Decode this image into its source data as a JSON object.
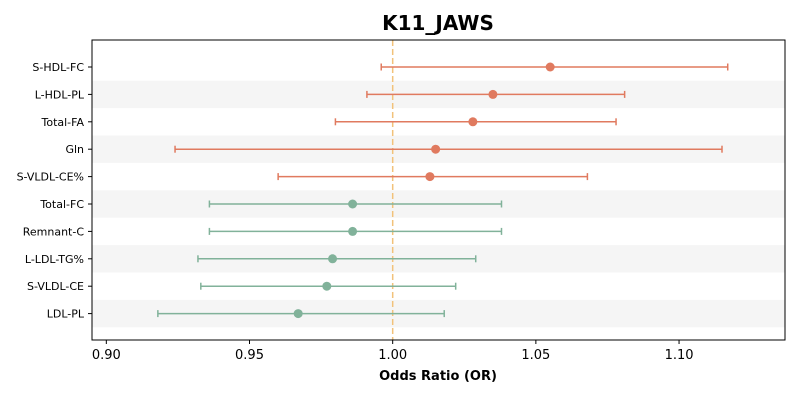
{
  "chart_data": {
    "type": "forest",
    "title": "K11_JAWS",
    "xlabel": "Odds Ratio (OR)",
    "ylabel": "",
    "xlim": [
      0.895,
      1.137
    ],
    "xticks": [
      0.9,
      0.95,
      1.0,
      1.05,
      1.1
    ],
    "xtick_labels": [
      "0.90",
      "0.95",
      "1.00",
      "1.05",
      "1.10"
    ],
    "reference_line": 1.0,
    "reference_color": "#f2c27a",
    "band_color": "#f5f5f5",
    "series": [
      {
        "color": "#e07a5f",
        "rows": [
          "S-HDL-FC",
          "L-HDL-PL",
          "Total-FA",
          "Gln",
          "S-VLDL-CE%"
        ]
      },
      {
        "color": "#81b29a",
        "rows": [
          "Total-FC",
          "Remnant-C",
          "L-LDL-TG%",
          "S-VLDL-CE",
          "LDL-PL"
        ]
      }
    ],
    "rows": [
      {
        "label": "S-HDL-FC",
        "or": 1.055,
        "lower": 0.996,
        "upper": 1.117,
        "color": "#e07a5f"
      },
      {
        "label": "L-HDL-PL",
        "or": 1.035,
        "lower": 0.991,
        "upper": 1.081,
        "color": "#e07a5f"
      },
      {
        "label": "Total-FA",
        "or": 1.028,
        "lower": 0.98,
        "upper": 1.078,
        "color": "#e07a5f"
      },
      {
        "label": "Gln",
        "or": 1.015,
        "lower": 0.924,
        "upper": 1.115,
        "color": "#e07a5f"
      },
      {
        "label": "S-VLDL-CE%",
        "or": 1.013,
        "lower": 0.96,
        "upper": 1.068,
        "color": "#e07a5f"
      },
      {
        "label": "Total-FC",
        "or": 0.986,
        "lower": 0.936,
        "upper": 1.038,
        "color": "#81b29a"
      },
      {
        "label": "Remnant-C",
        "or": 0.986,
        "lower": 0.936,
        "upper": 1.038,
        "color": "#81b29a"
      },
      {
        "label": "L-LDL-TG%",
        "or": 0.979,
        "lower": 0.932,
        "upper": 1.029,
        "color": "#81b29a"
      },
      {
        "label": "S-VLDL-CE",
        "or": 0.977,
        "lower": 0.933,
        "upper": 1.022,
        "color": "#81b29a"
      },
      {
        "label": "LDL-PL",
        "or": 0.967,
        "lower": 0.918,
        "upper": 1.018,
        "color": "#81b29a"
      }
    ],
    "grid": false,
    "legend": "none"
  }
}
